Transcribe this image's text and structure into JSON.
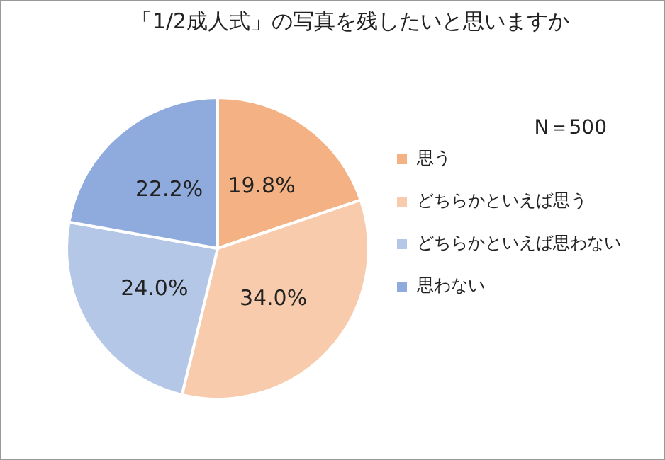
{
  "chart_data": {
    "type": "pie",
    "title": "「1/2成人式」の写真を残したいと思いますか",
    "categories": [
      "思う",
      "どちらかといえば思う",
      "どちらかといえば思わない",
      "思わない"
    ],
    "values": [
      19.8,
      34.0,
      24.0,
      22.2
    ],
    "colors": [
      "#f4b183",
      "#f8cbad",
      "#b4c7e7",
      "#8faadc"
    ],
    "value_labels": [
      "19.8%",
      "34.0%",
      "24.0%",
      "22.2%"
    ],
    "annotations": [
      "N＝500"
    ],
    "legend": "right"
  }
}
